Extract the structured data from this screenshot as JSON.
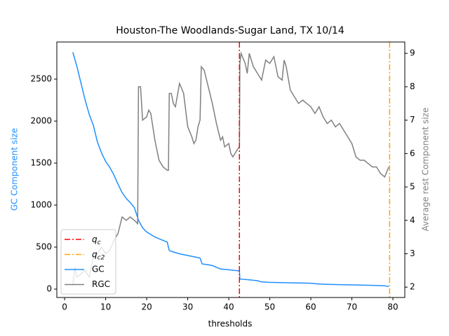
{
  "chart_data": {
    "type": "line",
    "title": "Houston-The Woodlands-Sugar Land, TX 10/14",
    "x_label": "thresholds",
    "y_label": "GC Component size",
    "y2_label": "Average rest Component size",
    "xlim": [
      -1.9,
      82.9
    ],
    "xticks": [
      0,
      10,
      20,
      30,
      40,
      50,
      60,
      70,
      80
    ],
    "ylim": [
      -100,
      2942
    ],
    "yticks": [
      0,
      500,
      1000,
      1500,
      2000,
      2500
    ],
    "y2lim": [
      1.69,
      9.34
    ],
    "y2ticks": [
      2,
      3,
      4,
      5,
      6,
      7,
      8,
      9
    ],
    "y_label_color": "#1e90ff",
    "y2_label_color": "#808080",
    "legend": "lower left",
    "vlines": [
      {
        "name": "q_c",
        "x": 42.6,
        "color": "#ff0000"
      },
      {
        "name": "q_c2",
        "x": 79.2,
        "color": "#ffa500"
      }
    ],
    "series": [
      {
        "name": "GC",
        "color": "#1e90ff",
        "x": [
          2,
          3,
          4,
          5,
          6,
          7,
          8,
          9,
          10,
          11,
          12,
          13,
          14,
          15,
          16,
          17,
          18,
          19,
          20,
          21,
          22,
          23,
          24,
          25,
          25.5,
          26,
          28,
          30,
          32,
          33,
          33.5,
          35,
          36,
          37,
          38,
          40,
          42,
          42.6,
          42.7,
          45,
          47,
          48,
          50,
          55,
          60,
          62,
          65,
          70,
          75,
          78,
          79
        ],
        "values": [
          2820,
          2650,
          2450,
          2250,
          2080,
          1950,
          1750,
          1620,
          1520,
          1450,
          1360,
          1250,
          1150,
          1080,
          1030,
          970,
          820,
          730,
          680,
          650,
          620,
          600,
          580,
          560,
          460,
          450,
          420,
          400,
          380,
          370,
          300,
          290,
          280,
          260,
          240,
          230,
          220,
          215,
          120,
          110,
          100,
          85,
          80,
          75,
          70,
          60,
          55,
          50,
          45,
          40,
          30
        ]
      },
      {
        "name": "RGC",
        "color": "#808080",
        "axis": "y2",
        "x": [
          2,
          2.5,
          3,
          4,
          5,
          6,
          7,
          8,
          9,
          10,
          11,
          12,
          13,
          14,
          15,
          16,
          17,
          17.8,
          18,
          18.5,
          19,
          20,
          20.5,
          21,
          22,
          23,
          24,
          25,
          25.3,
          25.5,
          26,
          26.5,
          27,
          28,
          29,
          30,
          31,
          31.5,
          32,
          32.5,
          33,
          33.3,
          34,
          35,
          36,
          37,
          38,
          38.5,
          39,
          40,
          40.5,
          41,
          42,
          42.6,
          42.7,
          43,
          44,
          44.5,
          45,
          46,
          47,
          48,
          49,
          50,
          51,
          52,
          53,
          53.5,
          54,
          55,
          56,
          57,
          58,
          59,
          60,
          61,
          62,
          63,
          64,
          65,
          66,
          67,
          68,
          69,
          70,
          71,
          72,
          73,
          74,
          75,
          76,
          77,
          78,
          79
        ],
        "values": [
          2.05,
          2.6,
          2.3,
          2.4,
          2.5,
          2.3,
          2.9,
          3.0,
          3.2,
          3.0,
          3.1,
          3.4,
          3.6,
          4.1,
          4.0,
          4.1,
          4.0,
          3.9,
          8.0,
          8.0,
          7.0,
          7.1,
          7.3,
          7.2,
          6.4,
          5.8,
          5.6,
          5.5,
          5.5,
          7.8,
          7.8,
          7.5,
          7.4,
          8.1,
          7.8,
          6.8,
          6.5,
          6.3,
          6.4,
          6.8,
          7.0,
          8.6,
          8.5,
          8.0,
          7.5,
          6.9,
          6.4,
          6.5,
          6.2,
          6.3,
          6.0,
          5.9,
          6.1,
          6.2,
          8.7,
          9.0,
          8.7,
          8.4,
          9.0,
          8.6,
          8.4,
          8.2,
          8.8,
          8.7,
          8.9,
          8.3,
          8.2,
          8.8,
          8.6,
          7.9,
          7.7,
          7.5,
          7.6,
          7.5,
          7.4,
          7.2,
          7.4,
          7.1,
          6.9,
          7.0,
          6.8,
          6.9,
          6.7,
          6.5,
          6.3,
          5.9,
          5.8,
          5.8,
          5.7,
          5.6,
          5.6,
          5.4,
          5.3,
          5.6
        ]
      }
    ]
  }
}
